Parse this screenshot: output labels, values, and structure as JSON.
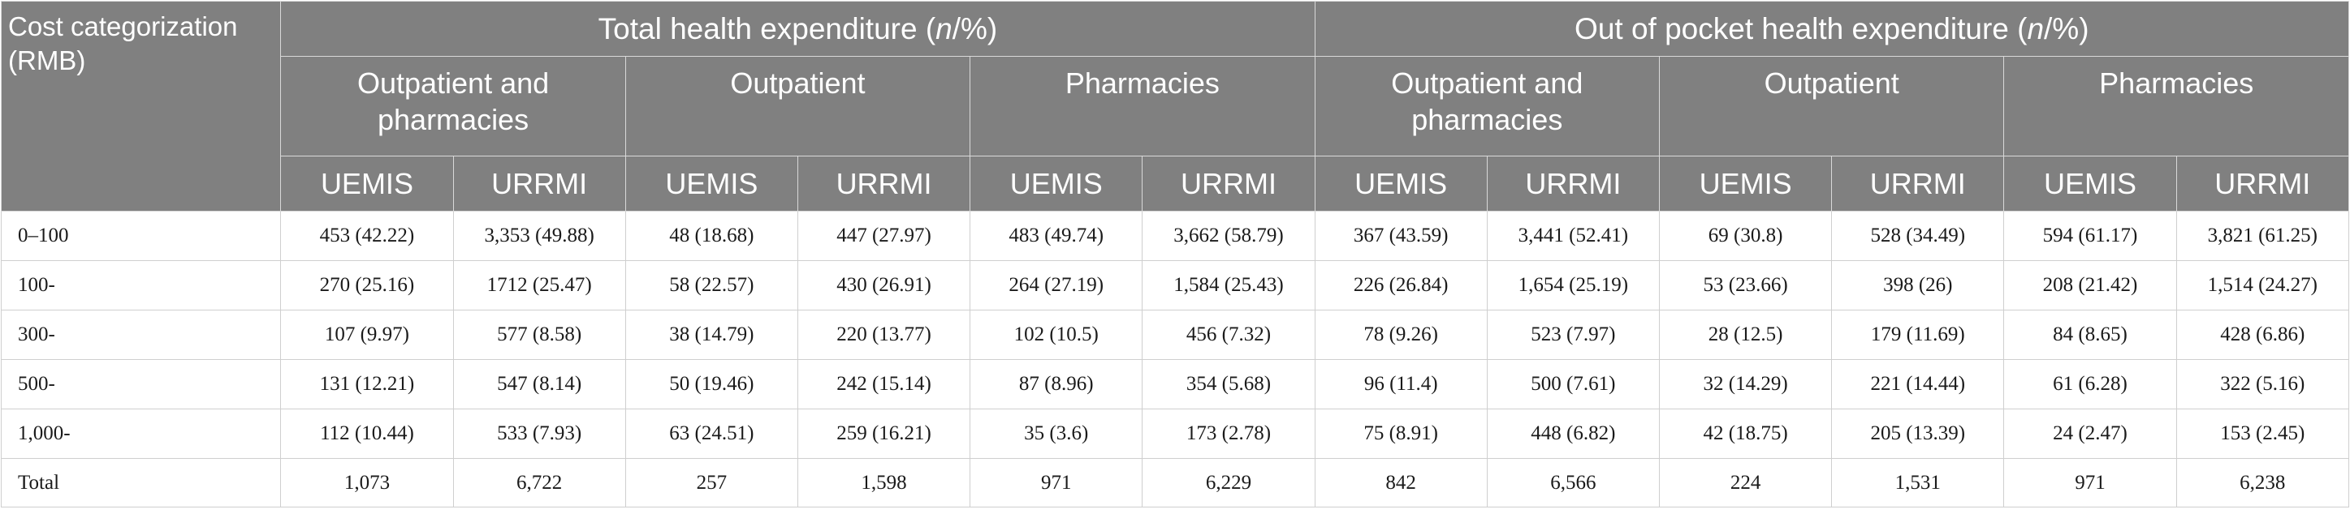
{
  "header": {
    "corner": "Cost categorization (RMB)",
    "groups": [
      {
        "title_pre": "Total health expenditure (",
        "title_italic": "n",
        "title_post": "/%)"
      },
      {
        "title_pre": "Out of pocket health expenditure (",
        "title_italic": "n",
        "title_post": "/%)"
      }
    ],
    "subgroups": [
      "Outpatient and pharmacies",
      "Outpatient",
      "Pharmacies",
      "Outpatient and pharmacies",
      "Outpatient",
      "Pharmacies"
    ],
    "insurance": [
      "UEMIS",
      "URRMI",
      "UEMIS",
      "URRMI",
      "UEMIS",
      "URRMI",
      "UEMIS",
      "URRMI",
      "UEMIS",
      "URRMI",
      "UEMIS",
      "URRMI"
    ]
  },
  "rows": [
    {
      "label": "0–100",
      "cells": [
        "453 (42.22)",
        "3,353 (49.88)",
        "48 (18.68)",
        "447 (27.97)",
        "483 (49.74)",
        "3,662 (58.79)",
        "367 (43.59)",
        "3,441 (52.41)",
        "69 (30.8)",
        "528 (34.49)",
        "594 (61.17)",
        "3,821 (61.25)"
      ]
    },
    {
      "label": "100-",
      "cells": [
        "270 (25.16)",
        "1712 (25.47)",
        "58 (22.57)",
        "430 (26.91)",
        "264 (27.19)",
        "1,584 (25.43)",
        "226 (26.84)",
        "1,654 (25.19)",
        "53 (23.66)",
        "398 (26)",
        "208 (21.42)",
        "1,514 (24.27)"
      ]
    },
    {
      "label": "300-",
      "cells": [
        "107 (9.97)",
        "577 (8.58)",
        "38 (14.79)",
        "220 (13.77)",
        "102 (10.5)",
        "456 (7.32)",
        "78 (9.26)",
        "523 (7.97)",
        "28 (12.5)",
        "179 (11.69)",
        "84 (8.65)",
        "428 (6.86)"
      ]
    },
    {
      "label": "500-",
      "cells": [
        "131 (12.21)",
        "547 (8.14)",
        "50 (19.46)",
        "242 (15.14)",
        "87 (8.96)",
        "354 (5.68)",
        "96 (11.4)",
        "500 (7.61)",
        "32 (14.29)",
        "221 (14.44)",
        "61 (6.28)",
        "322 (5.16)"
      ]
    },
    {
      "label": "1,000-",
      "cells": [
        "112 (10.44)",
        "533 (7.93)",
        "63 (24.51)",
        "259 (16.21)",
        "35 (3.6)",
        "173 (2.78)",
        "75 (8.91)",
        "448 (6.82)",
        "42 (18.75)",
        "205 (13.39)",
        "24 (2.47)",
        "153 (2.45)"
      ]
    },
    {
      "label": "Total",
      "cells": [
        "1,073",
        "6,722",
        "257",
        "1,598",
        "971",
        "6,229",
        "842",
        "6,566",
        "224",
        "1,531",
        "971",
        "6,238"
      ]
    }
  ]
}
